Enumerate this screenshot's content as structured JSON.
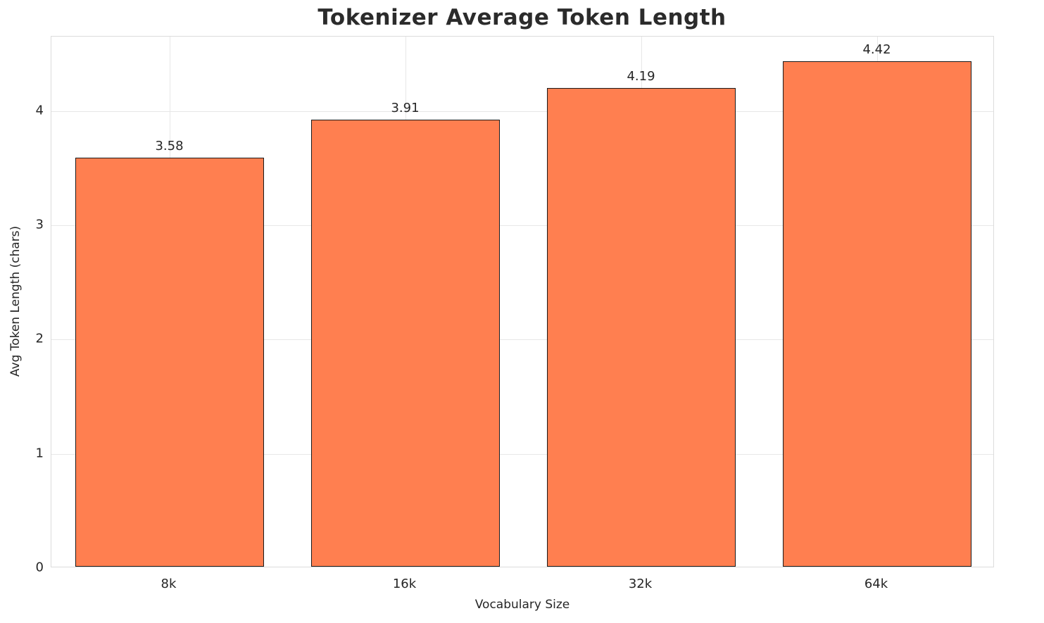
{
  "chart_data": {
    "type": "bar",
    "title": "Tokenizer Average Token Length",
    "xlabel": "Vocabulary Size",
    "ylabel": "Avg Token Length (chars)",
    "categories": [
      "8k",
      "16k",
      "32k",
      "64k"
    ],
    "values": [
      3.58,
      3.91,
      4.19,
      4.42
    ],
    "value_labels": [
      "3.58",
      "3.91",
      "4.19",
      "4.42"
    ],
    "yticks": [
      0,
      1,
      2,
      3,
      4
    ],
    "ylim": [
      0,
      4.65
    ],
    "grid": true,
    "legend": "none",
    "bar_color": "#FF7F50",
    "bar_edge_color": "#1a1a1a",
    "background_color": "#ffffff",
    "gridline_color": "#e7e7e7",
    "title_color": "#2b2b2b",
    "text_color": "#262626"
  }
}
